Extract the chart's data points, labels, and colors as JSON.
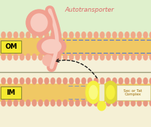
{
  "title": "Autotransporter",
  "om_label": "OM",
  "im_label": "IM",
  "sec_label": "Sec or Tat\nComplex",
  "bg_green": "#dff0cc",
  "bg_yellow_light": "#f5f0d5",
  "bg_mid": "#f0ecd0",
  "membrane_gold": "#f0c864",
  "membrane_dark": "#e0b050",
  "lipid_pink": "#e89880",
  "lipid_pink_om": "#f0a888",
  "protein_pink_dark": "#f0a090",
  "protein_pink_light": "#f8ccc0",
  "protein_pink_mid": "#f5b8a8",
  "yellow_bright": "#f5f040",
  "yellow_light": "#fafa80",
  "yellow_dark": "#e0d838",
  "dot_blue_om": "#5577cc",
  "dot_blue_im": "#8899bb",
  "separator_color": "#999977",
  "arrow_color": "#111111",
  "label_bg": "#f5e830",
  "label_border": "#888833",
  "sec_text_color": "#996600",
  "title_color": "#dd6666"
}
